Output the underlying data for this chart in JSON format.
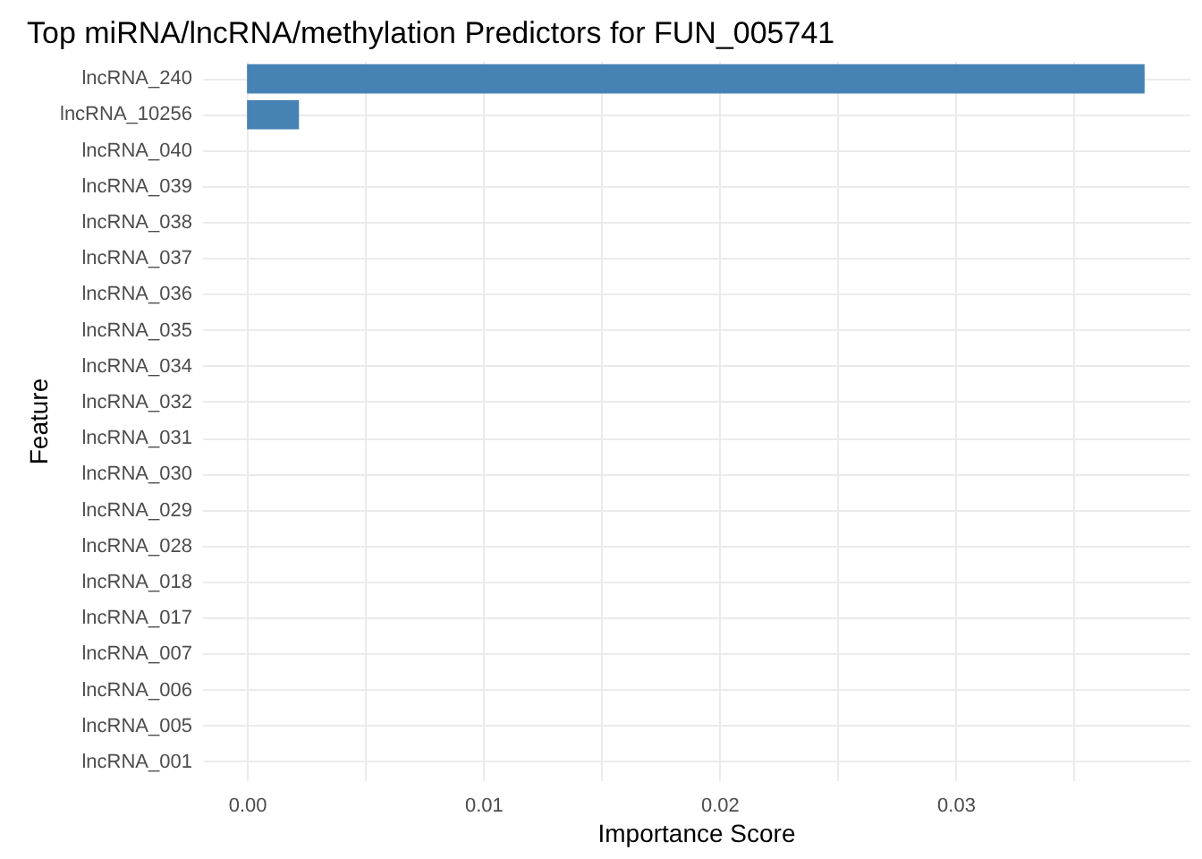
{
  "chart_data": {
    "type": "bar",
    "orientation": "horizontal",
    "title": "Top miRNA/lncRNA/methylation Predictors for FUN_005741",
    "xlabel": "Importance Score",
    "ylabel": "Feature",
    "categories": [
      "lncRNA_240",
      "lncRNA_10256",
      "lncRNA_040",
      "lncRNA_039",
      "lncRNA_038",
      "lncRNA_037",
      "lncRNA_036",
      "lncRNA_035",
      "lncRNA_034",
      "lncRNA_032",
      "lncRNA_031",
      "lncRNA_030",
      "lncRNA_029",
      "lncRNA_028",
      "lncRNA_018",
      "lncRNA_017",
      "lncRNA_007",
      "lncRNA_006",
      "lncRNA_005",
      "lncRNA_001"
    ],
    "values": [
      0.038,
      0.0022,
      0,
      0,
      0,
      0,
      0,
      0,
      0,
      0,
      0,
      0,
      0,
      0,
      0,
      0,
      0,
      0,
      0,
      0
    ],
    "color": "#4682b4",
    "xlim": [
      -0.0019,
      0.0399
    ],
    "xticks": [
      {
        "value": 0,
        "label": "0.00"
      },
      {
        "value": 0.005,
        "label": null
      },
      {
        "value": 0.01,
        "label": "0.01"
      },
      {
        "value": 0.015,
        "label": null
      },
      {
        "value": 0.02,
        "label": "0.02"
      },
      {
        "value": 0.025,
        "label": null
      },
      {
        "value": 0.03,
        "label": "0.03"
      },
      {
        "value": 0.035,
        "label": null
      }
    ],
    "grid": true
  }
}
